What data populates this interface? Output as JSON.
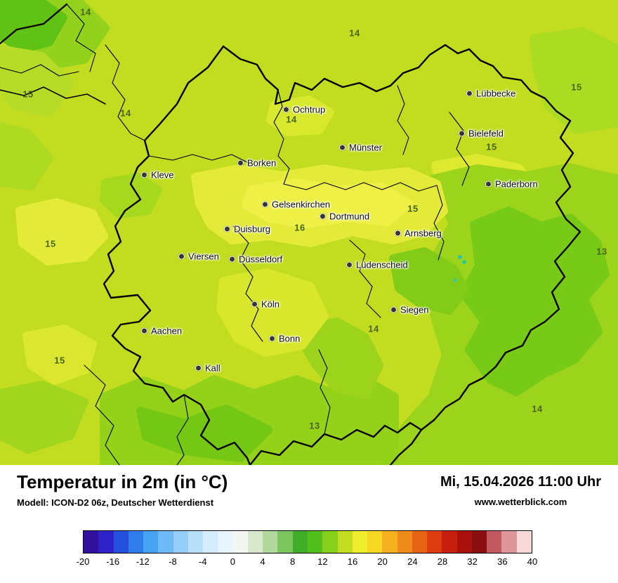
{
  "map": {
    "colors": {
      "base": "#c2dd20",
      "yellow_patch": "#eff046",
      "green_patch": "#9cd41c",
      "dark_green_patch": "#77ca16",
      "border": "#000000",
      "water_teal": "#2cc8a4",
      "temp_text": "#4b641c"
    },
    "cities": [
      {
        "name": "Ochtrup"
      },
      {
        "name": "Lübbecke"
      },
      {
        "name": "Münster"
      },
      {
        "name": "Bielefeld"
      },
      {
        "name": "Borken"
      },
      {
        "name": "Kleve"
      },
      {
        "name": "Paderborn"
      },
      {
        "name": "Gelsenkirchen"
      },
      {
        "name": "Dortmund"
      },
      {
        "name": "Duisburg"
      },
      {
        "name": "Arnsberg"
      },
      {
        "name": "Viersen"
      },
      {
        "name": "Düsseldorf"
      },
      {
        "name": "Lüdenscheid"
      },
      {
        "name": "Köln"
      },
      {
        "name": "Siegen"
      },
      {
        "name": "Aachen"
      },
      {
        "name": "Bonn"
      },
      {
        "name": "Kall"
      }
    ],
    "temp_labels": [
      {
        "value": "14"
      },
      {
        "value": "14"
      },
      {
        "value": "15"
      },
      {
        "value": "15"
      },
      {
        "value": "14"
      },
      {
        "value": "14"
      },
      {
        "value": "15"
      },
      {
        "value": "15"
      },
      {
        "value": "16"
      },
      {
        "value": "15"
      },
      {
        "value": "13"
      },
      {
        "value": "14"
      },
      {
        "value": "15"
      },
      {
        "value": "14"
      },
      {
        "value": "13"
      }
    ]
  },
  "footer": {
    "title": "Temperatur in 2m (in °C)",
    "model": "Modell: ICON-D2 06z, Deutscher Wetterdienst",
    "datetime": "Mi, 15.04.2026 11:00 Uhr",
    "website": "www.wetterblick.com"
  },
  "legend": {
    "unit": "°C",
    "ticks": [
      "-20",
      "-16",
      "-12",
      "-8",
      "-4",
      "0",
      "4",
      "8",
      "12",
      "16",
      "20",
      "24",
      "28",
      "32",
      "36",
      "40"
    ],
    "colors": [
      "#30109c",
      "#2e22c8",
      "#2450dc",
      "#2f7ceb",
      "#46a2f3",
      "#6cbaf6",
      "#94cef8",
      "#b8e0fb",
      "#d4ecfd",
      "#e9f5fe",
      "#f2f7f2",
      "#d8e8cc",
      "#b2d89e",
      "#7cc45e",
      "#3fae28",
      "#52c01c",
      "#86d01c",
      "#c2de20",
      "#eeee2e",
      "#f6d822",
      "#f4b01e",
      "#ee8c1a",
      "#e66414",
      "#dc3c10",
      "#c81e0e",
      "#aa100c",
      "#8a0e12",
      "#c05a60",
      "#de9698",
      "#f6d8d8"
    ]
  }
}
